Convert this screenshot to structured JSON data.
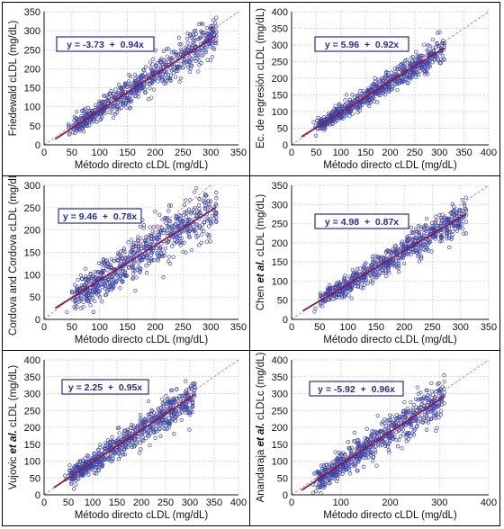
{
  "figure": {
    "panels": [
      {
        "ylabel_parts": [
          {
            "text": "Friedewald cLDL (mg/dL)",
            "italic": false
          }
        ],
        "xlabel": "Método directo cLDL (mg/dL)",
        "equation": "y = -3.73  +  0.94x"
      },
      {
        "ylabel_parts": [
          {
            "text": "Ec. de regresión cLDL (mg/dL)",
            "italic": false
          }
        ],
        "xlabel": "Método directo cLDL (mg/dL)",
        "equation": "y = 5.96  +  0.92x"
      },
      {
        "ylabel_parts": [
          {
            "text": "Cordova and Cordova cLDL (mg/dL)",
            "italic": false
          }
        ],
        "xlabel": "Método directo cLDL (mg/dL)",
        "equation": "y = 9.46  +  0.78x"
      },
      {
        "ylabel_parts": [
          {
            "text": "Chen ",
            "italic": false
          },
          {
            "text": "et al.",
            "italic": true
          },
          {
            "text": " cLDL (mg/dL)",
            "italic": false
          }
        ],
        "xlabel": "Método directo cLDL (mg/dL)",
        "equation": "y = 4.98  +  0.87x"
      },
      {
        "ylabel_parts": [
          {
            "text": "Vujovic ",
            "italic": false
          },
          {
            "text": "et al.",
            "italic": true
          },
          {
            "text": " cLDL (mg/dL)",
            "italic": false
          }
        ],
        "xlabel": "Método directo cLDL (mg/dL)",
        "equation": "y = 2.25  +  0.95x"
      },
      {
        "ylabel_parts": [
          {
            "text": "Anandaraja ",
            "italic": false
          },
          {
            "text": "et al.",
            "italic": true
          },
          {
            "text": " cLDLc (mg/dL)",
            "italic": false
          }
        ],
        "xlabel": "Método directo cLDL (mg/dL)",
        "equation": "y = -5.92  +  0.96x"
      }
    ]
  },
  "colors": {
    "points": "#3c46a8",
    "fit_line": "#8b1a4a",
    "identity_line": "#e06060",
    "grid": "#bbbbbb",
    "equation_box": "#2a2a9a"
  },
  "chart_data": [
    {
      "type": "scatter",
      "xlim": [
        0,
        350
      ],
      "ylim": [
        0,
        350
      ],
      "xticks": [
        0,
        50,
        100,
        150,
        200,
        250,
        300,
        350
      ],
      "yticks": [
        0,
        50,
        100,
        150,
        200,
        250,
        300,
        350
      ],
      "intercept": -3.73,
      "slope": 0.94,
      "x_range": [
        20,
        310
      ],
      "scatter_sd": 18,
      "n_points": 700,
      "identity_line": true,
      "grid": true
    },
    {
      "type": "scatter",
      "xlim": [
        0,
        400
      ],
      "ylim": [
        0,
        400
      ],
      "xticks": [
        0,
        50,
        100,
        150,
        200,
        250,
        300,
        350,
        400
      ],
      "yticks": [
        0,
        50,
        100,
        150,
        200,
        250,
        300,
        350,
        400
      ],
      "intercept": 5.96,
      "slope": 0.92,
      "x_range": [
        20,
        310
      ],
      "scatter_sd": 15,
      "n_points": 700,
      "identity_line": true,
      "grid": true
    },
    {
      "type": "scatter",
      "xlim": [
        0,
        350
      ],
      "ylim": [
        0,
        300
      ],
      "xticks": [
        0,
        50,
        100,
        150,
        200,
        250,
        300,
        350
      ],
      "yticks": [
        0,
        50,
        100,
        150,
        200,
        250,
        300
      ],
      "intercept": 9.46,
      "slope": 0.78,
      "x_range": [
        20,
        310
      ],
      "scatter_sd": 24,
      "n_points": 700,
      "identity_line": true,
      "grid": true
    },
    {
      "type": "scatter",
      "xlim": [
        0,
        350
      ],
      "ylim": [
        0,
        350
      ],
      "xticks": [
        0,
        50,
        100,
        150,
        200,
        250,
        300,
        350
      ],
      "yticks": [
        0,
        50,
        100,
        150,
        200,
        250,
        300,
        350
      ],
      "intercept": 4.98,
      "slope": 0.87,
      "x_range": [
        20,
        310
      ],
      "scatter_sd": 16,
      "n_points": 700,
      "identity_line": true,
      "grid": true
    },
    {
      "type": "scatter",
      "xlim": [
        0,
        400
      ],
      "ylim": [
        0,
        400
      ],
      "xticks": [
        0,
        50,
        100,
        150,
        200,
        250,
        300,
        350,
        400
      ],
      "yticks": [
        0,
        50,
        100,
        150,
        200,
        250,
        300,
        350,
        400
      ],
      "intercept": 2.25,
      "slope": 0.95,
      "x_range": [
        20,
        310
      ],
      "scatter_sd": 20,
      "n_points": 700,
      "identity_line": true,
      "grid": true
    },
    {
      "type": "scatter",
      "xlim": [
        0,
        400
      ],
      "ylim": [
        0,
        400
      ],
      "xticks": [
        0,
        100,
        200,
        300,
        400
      ],
      "yticks": [
        0,
        50,
        100,
        150,
        200,
        250,
        300,
        350,
        400
      ],
      "intercept": -5.92,
      "slope": 0.96,
      "x_range": [
        20,
        310
      ],
      "scatter_sd": 22,
      "n_points": 700,
      "identity_line": true,
      "grid": true
    }
  ]
}
